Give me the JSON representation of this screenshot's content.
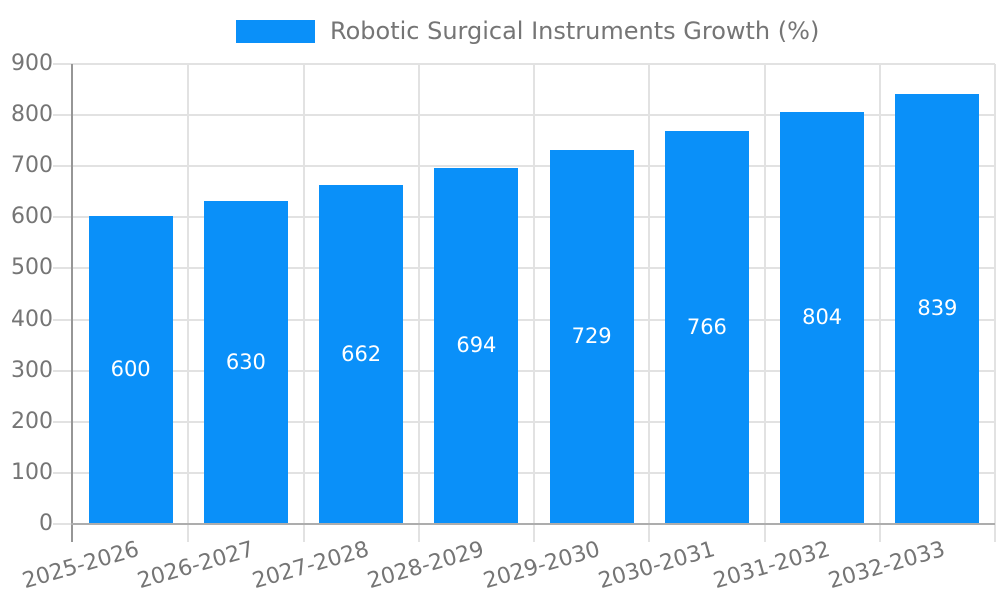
{
  "chart_data": {
    "type": "bar",
    "title": "Robotic Surgical Instruments Growth (%)",
    "legend": {
      "label": "Robotic Surgical Instruments Growth (%)",
      "position": "top"
    },
    "categories": [
      "2025-2026",
      "2026-2027",
      "2027-2028",
      "2028-2029",
      "2029-2030",
      "2030-2031",
      "2031-2032",
      "2032-2033"
    ],
    "values": [
      600,
      630,
      662,
      694,
      729,
      766,
      804,
      839
    ],
    "value_labels_shown": true,
    "xlabel": "",
    "ylabel": "",
    "ylim": [
      0,
      900
    ],
    "yticks": [
      0,
      100,
      200,
      300,
      400,
      500,
      600,
      700,
      800,
      900
    ],
    "grid": true,
    "colors": {
      "bar": "#0A90F9",
      "value_label": "#FFFFFF",
      "axis_label": "#757575",
      "legend_label": "#757575",
      "gridline": "#E2E2E2",
      "y_axis_line": "#969696",
      "x_axis_line": "#ADADAD"
    }
  }
}
